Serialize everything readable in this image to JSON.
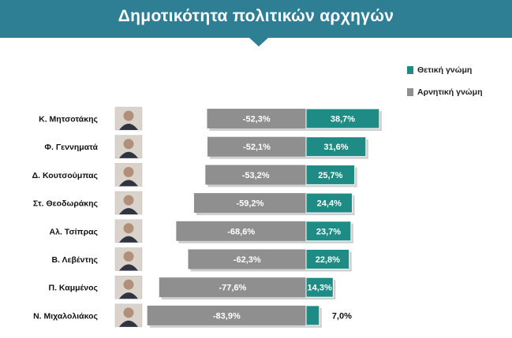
{
  "title": "Δημοτικότητα πολιτικών αρχηγών",
  "colors": {
    "header": "#2e7f93",
    "positive": "#1e8c84",
    "negative": "#8f8f8f"
  },
  "chart_data": {
    "type": "bar",
    "orientation": "horizontal-diverging",
    "categories": [
      "Κ. Μητσοτάκης",
      "Φ. Γεννηματά",
      "Δ. Κουτσούμπας",
      "Στ. Θεοδωράκης",
      "Αλ. Τσίπρας",
      "Β. Λεβέντης",
      "Π. Καμμένος",
      "Ν. Μιχαλολιάκος"
    ],
    "series": [
      {
        "name": "Θετική γνώμη",
        "color": "#1e8c84",
        "values": [
          38.7,
          31.6,
          25.7,
          24.4,
          23.7,
          22.8,
          14.3,
          7.0
        ],
        "labels": [
          "38,7%",
          "31,6%",
          "25,7%",
          "24,4%",
          "23,7%",
          "22,8%",
          "14,3%",
          "7,0%"
        ]
      },
      {
        "name": "Αρνητική γνώμη",
        "color": "#8f8f8f",
        "values": [
          -52.3,
          -52.1,
          -53.2,
          -59.2,
          -68.6,
          -62.3,
          -77.6,
          -83.9
        ],
        "labels": [
          "-52,3%",
          "-52,1%",
          "-53,2%",
          "-59,2%",
          "-68,6%",
          "-62,3%",
          "-77,6%",
          "-83,9%"
        ]
      }
    ],
    "legend_position": "top-right",
    "grid": false
  }
}
